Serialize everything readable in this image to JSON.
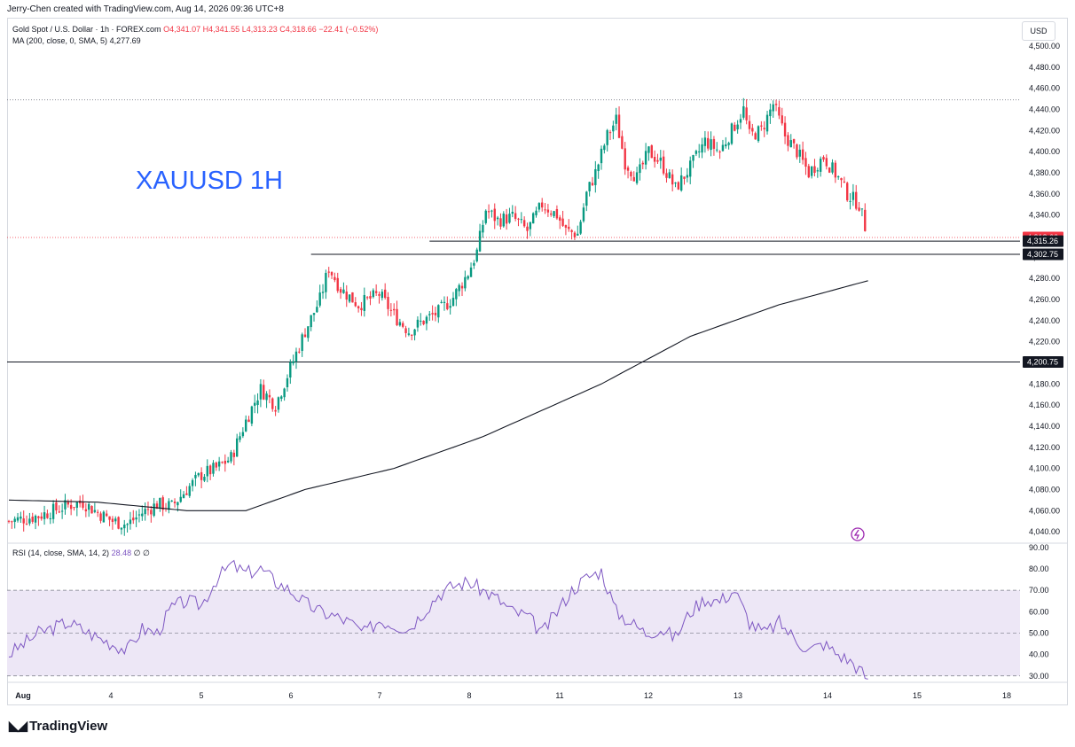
{
  "header": {
    "attribution": "Jerry-Chen created with TradingView.com, Aug 14, 2026 09:36 UTC+8"
  },
  "legend": {
    "symbol": "Gold Spot / U.S. Dollar · 1h · FOREX.com",
    "o": "O4,341.07",
    "h": "H4,341.55",
    "l": "L4,313.23",
    "c": "C4,318.66",
    "chg": "−22.41 (−0.52%)",
    "ma": "MA (200, close, 0, SMA, 5)",
    "ma_value": "4,277.69"
  },
  "big_label": "XAUUSD 1H",
  "currency": "USD",
  "logo": "TradingView",
  "rsi_legend": {
    "label": "RSI (14, close, SMA, 14, 2)",
    "value": "28.48",
    "extra": "∅ ∅"
  },
  "colors": {
    "up": "#089981",
    "down": "#f23645",
    "rsi": "#7e57c2",
    "rsi_band": "#ede7f6",
    "ma": "#131722"
  },
  "chart_data": {
    "type": "candlestick",
    "title": "Gold Spot / U.S. Dollar · 1h · FOREX.com",
    "price_axis": {
      "min": 4040,
      "max": 4500,
      "ticks": [
        4040,
        4060,
        4080,
        4100,
        4120,
        4140,
        4160,
        4180,
        4200,
        4220,
        4240,
        4260,
        4280,
        4300,
        4320,
        4340,
        4360,
        4380,
        4400,
        4420,
        4440,
        4460,
        4480,
        4500
      ]
    },
    "x_ticks": [
      "Aug",
      "4",
      "5",
      "6",
      "7",
      "8",
      "11",
      "12",
      "13",
      "14",
      "15",
      "18"
    ],
    "horizontal_lines": [
      4315.26,
      4302.75,
      4200.75
    ],
    "dotted_lines": [
      4449,
      4318.66
    ],
    "price_labels": [
      {
        "value": 4318.66,
        "text": "4,318.66",
        "style": "red"
      },
      {
        "value": 4315.26,
        "text": "4,315.26",
        "style": "dark"
      },
      {
        "value": 4302.75,
        "text": "4,302.75",
        "style": "dark"
      },
      {
        "value": 4200.75,
        "text": "4,200.75",
        "style": "dark"
      }
    ],
    "close_path": [
      [
        0,
        4050
      ],
      [
        10,
        4055
      ],
      [
        20,
        4065
      ],
      [
        25,
        4068
      ],
      [
        30,
        4058
      ],
      [
        35,
        4050
      ],
      [
        40,
        4047
      ],
      [
        45,
        4058
      ],
      [
        50,
        4066
      ],
      [
        55,
        4064
      ],
      [
        60,
        4080
      ],
      [
        65,
        4094
      ],
      [
        70,
        4100
      ],
      [
        75,
        4110
      ],
      [
        80,
        4145
      ],
      [
        85,
        4175
      ],
      [
        90,
        4160
      ],
      [
        95,
        4195
      ],
      [
        100,
        4230
      ],
      [
        105,
        4260
      ],
      [
        108,
        4290
      ],
      [
        112,
        4270
      ],
      [
        118,
        4255
      ],
      [
        125,
        4265
      ],
      [
        130,
        4245
      ],
      [
        135,
        4230
      ],
      [
        140,
        4240
      ],
      [
        145,
        4248
      ],
      [
        150,
        4262
      ],
      [
        155,
        4285
      ],
      [
        158,
        4305
      ],
      [
        161,
        4345
      ],
      [
        165,
        4335
      ],
      [
        170,
        4338
      ],
      [
        175,
        4325
      ],
      [
        180,
        4350
      ],
      [
        185,
        4340
      ],
      [
        188,
        4325
      ],
      [
        192,
        4322
      ],
      [
        195,
        4360
      ],
      [
        198,
        4380
      ],
      [
        202,
        4415
      ],
      [
        205,
        4430
      ],
      [
        208,
        4390
      ],
      [
        212,
        4375
      ],
      [
        216,
        4400
      ],
      [
        220,
        4390
      ],
      [
        225,
        4365
      ],
      [
        230,
        4385
      ],
      [
        235,
        4410
      ],
      [
        240,
        4400
      ],
      [
        245,
        4425
      ],
      [
        248,
        4440
      ],
      [
        250,
        4415
      ],
      [
        254,
        4420
      ],
      [
        258,
        4445
      ],
      [
        262,
        4415
      ],
      [
        266,
        4400
      ],
      [
        270,
        4380
      ],
      [
        275,
        4395
      ],
      [
        280,
        4375
      ],
      [
        283,
        4360
      ],
      [
        287,
        4350
      ],
      [
        290,
        4318.66
      ]
    ],
    "ma_path": [
      [
        0,
        4070
      ],
      [
        30,
        4068
      ],
      [
        60,
        4060
      ],
      [
        80,
        4060
      ],
      [
        100,
        4080
      ],
      [
        130,
        4100
      ],
      [
        160,
        4130
      ],
      [
        200,
        4180
      ],
      [
        230,
        4225
      ],
      [
        260,
        4255
      ],
      [
        290,
        4277.69
      ]
    ],
    "rsi": {
      "axis": {
        "min": 30,
        "max": 90,
        "ticks": [
          30,
          40,
          50,
          60,
          70,
          80,
          90
        ]
      },
      "overbought": 70,
      "oversold": 30,
      "mid": 50,
      "path": [
        [
          0,
          40
        ],
        [
          10,
          50
        ],
        [
          20,
          55
        ],
        [
          30,
          48
        ],
        [
          40,
          42
        ],
        [
          45,
          52
        ],
        [
          50,
          50
        ],
        [
          55,
          62
        ],
        [
          60,
          65
        ],
        [
          65,
          63
        ],
        [
          70,
          75
        ],
        [
          75,
          82
        ],
        [
          80,
          78
        ],
        [
          85,
          80
        ],
        [
          90,
          74
        ],
        [
          95,
          70
        ],
        [
          100,
          64
        ],
        [
          105,
          60
        ],
        [
          110,
          58
        ],
        [
          115,
          55
        ],
        [
          120,
          50
        ],
        [
          125,
          56
        ],
        [
          130,
          54
        ],
        [
          135,
          52
        ],
        [
          140,
          60
        ],
        [
          145,
          68
        ],
        [
          150,
          72
        ],
        [
          155,
          74
        ],
        [
          160,
          70
        ],
        [
          165,
          66
        ],
        [
          170,
          60
        ],
        [
          175,
          58
        ],
        [
          180,
          50
        ],
        [
          185,
          60
        ],
        [
          190,
          70
        ],
        [
          195,
          76
        ],
        [
          200,
          79
        ],
        [
          205,
          60
        ],
        [
          210,
          55
        ],
        [
          215,
          50
        ],
        [
          220,
          52
        ],
        [
          225,
          48
        ],
        [
          230,
          60
        ],
        [
          235,
          66
        ],
        [
          240,
          65
        ],
        [
          245,
          70
        ],
        [
          250,
          55
        ],
        [
          255,
          50
        ],
        [
          260,
          55
        ],
        [
          265,
          48
        ],
        [
          270,
          42
        ],
        [
          275,
          45
        ],
        [
          280,
          40
        ],
        [
          285,
          36
        ],
        [
          290,
          28.48
        ]
      ],
      "value": 28.48
    }
  }
}
